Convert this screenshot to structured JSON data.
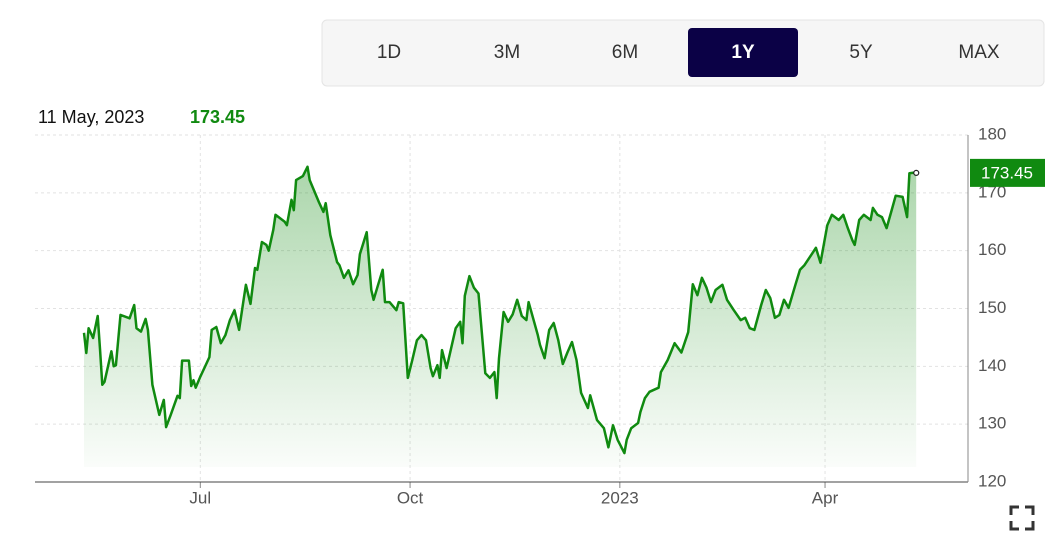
{
  "ranges": [
    "1D",
    "3M",
    "6M",
    "1Y",
    "5Y",
    "MAX"
  ],
  "selected_range": "1Y",
  "current": {
    "date": "11 May, 2023",
    "price": 173.45
  },
  "chart_data": {
    "type": "area",
    "color": "#108a10",
    "grid": true,
    "x": [
      0,
      1,
      2,
      4,
      6,
      7,
      8,
      9,
      12,
      13,
      14,
      16,
      20,
      22,
      23,
      25,
      27,
      28,
      30,
      33,
      35,
      36,
      38,
      41,
      42,
      43,
      46,
      47,
      48,
      49,
      51,
      53,
      55,
      56,
      58,
      60,
      62,
      64,
      66,
      68,
      70,
      71,
      73,
      75,
      76,
      78,
      80,
      81,
      83,
      84,
      88,
      89,
      91,
      92,
      93,
      96,
      98,
      99,
      103,
      105,
      106,
      108,
      111,
      112,
      114,
      116,
      118,
      120,
      121,
      124,
      126,
      127,
      129,
      131,
      132,
      134,
      137,
      138,
      140,
      142,
      144,
      146,
      148,
      150,
      152,
      153,
      155,
      156,
      157,
      159,
      163,
      165,
      166,
      167,
      169,
      171,
      173,
      176,
      178,
      180,
      181,
      182,
      184,
      186,
      188,
      190,
      192,
      194,
      195,
      199,
      200,
      202,
      204,
      206,
      208,
      210,
      212,
      214,
      216,
      218,
      221,
      222,
      224,
      225,
      228,
      230,
      232,
      234,
      237,
      238,
      240,
      243,
      244,
      246,
      248,
      252,
      253,
      256,
      259,
      262,
      265,
      267,
      269,
      271,
      273,
      275,
      277,
      280,
      282,
      285,
      288,
      290,
      292,
      294,
      297,
      299,
      301,
      303,
      305,
      307,
      309,
      312,
      314,
      316,
      319,
      321,
      323,
      326,
      328,
      331,
      333,
      335,
      337,
      338,
      340,
      342,
      345,
      346,
      348,
      350,
      352,
      354,
      356,
      359,
      361,
      362,
      364,
      365
    ],
    "values": [
      145.8,
      142.3,
      146.6,
      144.9,
      148.7,
      143,
      136.8,
      137.3,
      142.6,
      140,
      140.2,
      148.9,
      148.3,
      150.6,
      146.6,
      146,
      148.2,
      146.3,
      136.8,
      131.6,
      134.2,
      129.5,
      131.6,
      134.9,
      134.5,
      141,
      141,
      136.6,
      137.6,
      136.3,
      138.2,
      139.9,
      141.6,
      146.3,
      146.8,
      144,
      145.4,
      148,
      149.7,
      146.3,
      151.5,
      154.1,
      150.8,
      157,
      156.7,
      161.5,
      161,
      160,
      163.6,
      166.2,
      165,
      164.4,
      168.8,
      167,
      172.2,
      172.9,
      174.5,
      172.2,
      168.4,
      166.7,
      168.2,
      162.7,
      158,
      157.5,
      155.3,
      156.6,
      154.2,
      155.8,
      159.4,
      163.2,
      153.2,
      151.5,
      154.1,
      156.7,
      151.1,
      151.1,
      149.7,
      151.1,
      150.9,
      138,
      141.1,
      144.5,
      145.4,
      144.5,
      139.7,
      138.3,
      140.2,
      138,
      142.8,
      139.7,
      146.6,
      147.7,
      144,
      152.2,
      155.6,
      153.6,
      152.6,
      138.8,
      138,
      139,
      134.5,
      141.4,
      149.4,
      147.7,
      149,
      151.5,
      148.7,
      148,
      151.1,
      145.4,
      143.7,
      141.4,
      146.3,
      147.5,
      144.5,
      140.4,
      142.4,
      144.2,
      141.1,
      135.4,
      132.8,
      135,
      132.1,
      130.7,
      129.3,
      126,
      129.8,
      127.3,
      125,
      127.3,
      129.3,
      130.2,
      132.1,
      134.5,
      135.6,
      136.3,
      139,
      141.1,
      144,
      142.4,
      145.9,
      154.2,
      152.3,
      155.3,
      153.6,
      151.1,
      153.2,
      154.1,
      151.5,
      149.7,
      148,
      148.4,
      146.6,
      146.3,
      150.6,
      153.2,
      151.8,
      148.4,
      148.9,
      151.5,
      150.1,
      154.1,
      156.7,
      157.5,
      159.3,
      160.5,
      157.9,
      164.4,
      166.2,
      165.3,
      166.2,
      163.9,
      161.8,
      161,
      165.3,
      166.2,
      165.3,
      167.4,
      166.2,
      165.8,
      163.9,
      166.7,
      169.5,
      169.3,
      165.8,
      173.4,
      173.5,
      173.45
    ],
    "xlim": [
      -21.5,
      387.7
    ],
    "xticks": [
      {
        "value": 51,
        "label": "Jul"
      },
      {
        "value": 143,
        "label": "Oct"
      },
      {
        "value": 235,
        "label": "2023"
      },
      {
        "value": 325,
        "label": "Apr"
      }
    ],
    "ylim": [
      120,
      180
    ],
    "yticks": [
      120,
      130,
      140,
      150,
      160,
      170,
      180
    ]
  }
}
